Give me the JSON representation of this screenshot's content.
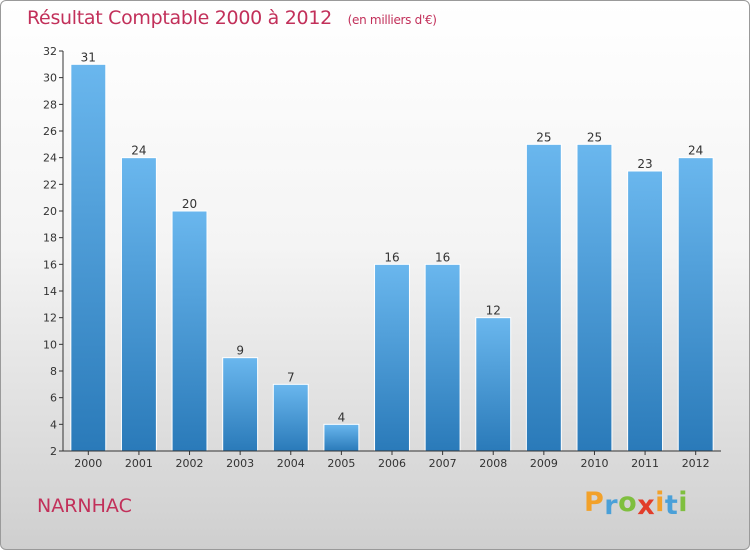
{
  "header": {
    "title": "Résultat Comptable 2000 à 2012",
    "subtitle": "(en milliers d'€)"
  },
  "footer": {
    "place": "NARNHAC",
    "logo_letters": [
      "P",
      "r",
      "o",
      "x",
      "i",
      "t",
      "i"
    ],
    "logo_colors": [
      "#f2a12a",
      "#4aa0d8",
      "#7fbf3f",
      "#e23d2a",
      "#f2a12a",
      "#4aa0d8",
      "#7fbf3f"
    ]
  },
  "colors": {
    "bar_top": "#6ab7ee",
    "bar_bottom": "#2a7ab9",
    "axis": "#333333",
    "text": "#333333"
  },
  "chart_data": {
    "type": "bar",
    "title": "Résultat Comptable 2000 à 2012",
    "subtitle": "(en milliers d'€)",
    "categories": [
      "2000",
      "2001",
      "2002",
      "2003",
      "2004",
      "2005",
      "2006",
      "2007",
      "2008",
      "2009",
      "2010",
      "2011",
      "2012"
    ],
    "values": [
      31,
      24,
      20,
      9,
      7,
      4,
      16,
      16,
      12,
      25,
      25,
      23,
      24
    ],
    "ylim": [
      2,
      32
    ],
    "yticks": [
      2,
      4,
      6,
      8,
      10,
      12,
      14,
      16,
      18,
      20,
      22,
      24,
      26,
      28,
      30,
      32
    ],
    "xlabel": "",
    "ylabel": "",
    "grid": false
  }
}
